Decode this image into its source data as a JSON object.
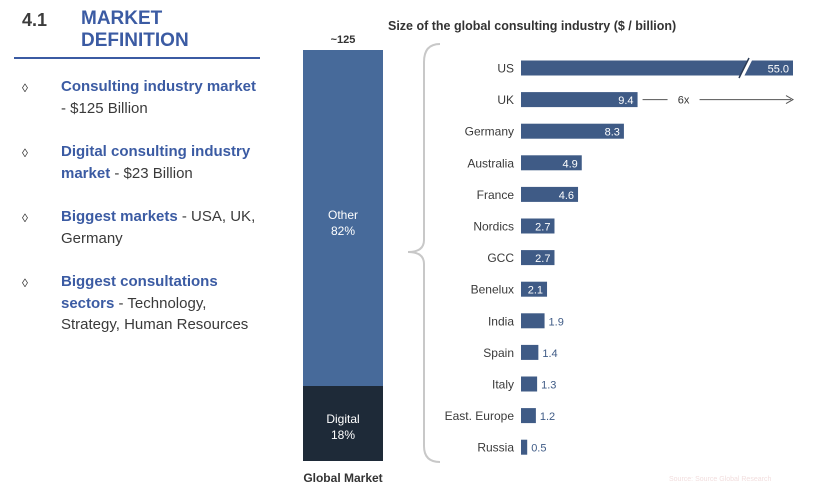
{
  "heading": {
    "number": "4.1",
    "title_line1": "MARKET",
    "title_line2": "DEFINITION"
  },
  "bullets": [
    {
      "bold": "Consulting industry market",
      "rest": " - $125 Billion"
    },
    {
      "bold": "Digital consulting industry market",
      "rest": " - $23 Billion"
    },
    {
      "bold": "Biggest markets",
      "rest": " - USA, UK, Germany"
    },
    {
      "bold": "Biggest consultations sectors",
      "rest": " - Technology, Strategy, Human Resources"
    }
  ],
  "global_market": {
    "total_label": "~125",
    "label": "Global Market",
    "segments": [
      {
        "name": "Other",
        "share_label": "82%",
        "share": 0.82
      },
      {
        "name": "Digital",
        "share_label": "18%",
        "share": 0.18
      }
    ]
  },
  "chart_data": {
    "type": "bar",
    "orientation": "horizontal",
    "title": "Size of the global consulting industry ($ / billion)",
    "categories": [
      "US",
      "UK",
      "Germany",
      "Australia",
      "France",
      "Nordics",
      "GCC",
      "Benelux",
      "India",
      "Spain",
      "Italy",
      "East. Europe",
      "Russia"
    ],
    "values": [
      55.0,
      9.4,
      8.3,
      4.9,
      4.6,
      2.7,
      2.7,
      2.1,
      1.9,
      1.4,
      1.3,
      1.2,
      0.5
    ],
    "value_labels": [
      "55.0",
      "9.4",
      "8.3",
      "4.9",
      "4.6",
      "2.7",
      "2.7",
      "2.1",
      "1.9",
      "1.4",
      "1.3",
      "1.2",
      "0.5"
    ],
    "broken_axis_category": "US",
    "annotation": "6x",
    "bar_color": "#3f5b86",
    "source": "Source: Source Global Research"
  }
}
